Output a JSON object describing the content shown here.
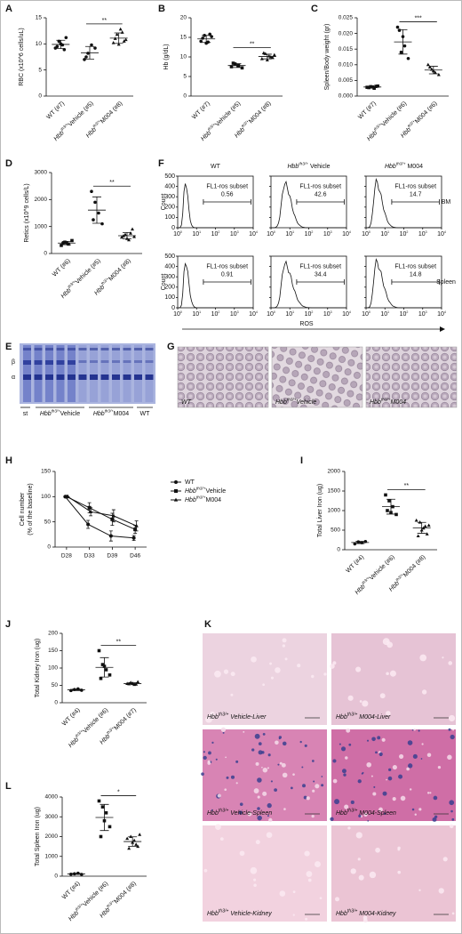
{
  "chart_data": [
    {
      "type": "dot",
      "label": "A",
      "ylabel": "RBC (x10^6 cells/uL)",
      "ylim": [
        0,
        15
      ],
      "yticks": [
        0,
        5,
        10,
        15
      ],
      "categories": [
        [
          "WT (#7)"
        ],
        [
          "Hbb",
          "th3/+",
          "Vehicle (#5)"
        ],
        [
          "Hbb",
          "th3/+",
          "M004 (#8)"
        ]
      ],
      "markers": [
        "circle",
        "circle",
        "triangle"
      ],
      "points": [
        [
          9.2,
          10.5,
          9.8,
          11.2,
          9.5,
          10.0,
          8.9
        ],
        [
          7.0,
          8.2,
          9.8,
          9.2,
          7.5
        ],
        [
          10.2,
          11.8,
          12.8,
          10.5,
          11.0,
          9.9,
          12.2,
          10.8
        ]
      ],
      "mean": [
        9.9,
        8.3,
        11.1
      ],
      "sd": [
        0.8,
        1.2,
        1.0
      ],
      "significance": {
        "label": "**",
        "between": [
          1,
          2
        ]
      }
    },
    {
      "type": "dot",
      "label": "B",
      "ylabel": "Hb (g/dL)",
      "ylim": [
        0,
        20
      ],
      "yticks": [
        0,
        5,
        10,
        15,
        20
      ],
      "categories": [
        [
          "WT (#7)"
        ],
        [
          "Hbb",
          "th3/+",
          "Vehicle (#5)"
        ],
        [
          "Hbb",
          "th3/+",
          "M004 (#8)"
        ]
      ],
      "markers": [
        "circle",
        "square",
        "triangle"
      ],
      "points": [
        [
          14.0,
          15.5,
          13.8,
          15.2,
          14.8,
          13.5,
          15.8
        ],
        [
          7.5,
          8.2,
          7.8,
          7.2,
          8.4
        ],
        [
          9.5,
          10.8,
          10.2,
          9.8,
          11.0,
          9.2,
          10.0,
          10.5
        ]
      ],
      "mean": [
        14.6,
        7.8,
        10.1
      ],
      "sd": [
        0.9,
        0.5,
        0.6
      ],
      "significance": {
        "label": "**",
        "between": [
          1,
          2
        ]
      }
    },
    {
      "type": "dot",
      "label": "C",
      "ylabel": "Spleen/Body weight (gr)",
      "ylim": [
        0,
        0.025
      ],
      "yticks": [
        {
          "value": 0,
          "label": "0.000"
        },
        {
          "value": 0.005,
          "label": "0.005"
        },
        {
          "value": 0.01,
          "label": "0.010"
        },
        {
          "value": 0.015,
          "label": "0.015"
        },
        {
          "value": 0.02,
          "label": "0.020"
        },
        {
          "value": 0.025,
          "label": "0.025"
        }
      ],
      "categories": [
        [
          "WT (#7)"
        ],
        [
          "Hbb",
          "th3/+",
          "Vehicle (#6)"
        ],
        [
          "Hbb",
          "th3/+",
          "M004 (#6)"
        ]
      ],
      "markers": [
        "square",
        "circle",
        "triangle"
      ],
      "points": [
        [
          0.0028,
          0.003,
          0.0025,
          0.0032,
          0.0027,
          0.0029,
          0.0031
        ],
        [
          0.022,
          0.014,
          0.016,
          0.012,
          0.021,
          0.019
        ],
        [
          0.01,
          0.0085,
          0.0075,
          0.0068,
          0.0092,
          0.008
        ]
      ],
      "mean": [
        0.0029,
        0.0173,
        0.0083
      ],
      "sd": [
        0.0002,
        0.0039,
        0.0012
      ],
      "significance": {
        "label": "***",
        "between": [
          1,
          2
        ]
      }
    },
    {
      "type": "dot",
      "label": "D",
      "ylabel": "Retics (x10^9 cells/L)",
      "ylim": [
        0,
        3000
      ],
      "yticks": [
        0,
        1000,
        2000,
        3000
      ],
      "categories": [
        [
          "WT (#6)"
        ],
        [
          "Hbb",
          "th3/+",
          "Vehicle (#5)"
        ],
        [
          "Hbb",
          "th3/+",
          "M004 (#8)"
        ]
      ],
      "markers": [
        "square",
        "circle",
        "triangle"
      ],
      "points": [
        [
          300,
          420,
          350,
          480,
          380,
          400
        ],
        [
          2300,
          1900,
          1500,
          1100,
          1250
        ],
        [
          600,
          700,
          500,
          900,
          650,
          550,
          750,
          620
        ]
      ],
      "mean": [
        388,
        1610,
        659
      ],
      "sd": [
        62,
        490,
        120
      ],
      "significance": {
        "label": "**",
        "between": [
          1,
          2
        ]
      }
    },
    {
      "type": "line",
      "label": "H",
      "ylabel": [
        "Cell number",
        "(% of the baseline)"
      ],
      "categories": [
        "D28",
        "D33",
        "D39",
        "D46"
      ],
      "ylim": [
        0,
        150
      ],
      "yticks": [
        0,
        50,
        100,
        150
      ],
      "series": [
        {
          "name": [
            "WT"
          ],
          "marker": "circle",
          "color": "#111111",
          "values": [
            100,
            45,
            22,
            18
          ],
          "errors": [
            0,
            8,
            10,
            5
          ]
        },
        {
          "name": [
            "Hbb",
            "th3/+",
            "Vehicle"
          ],
          "marker": "square",
          "color": "#111111",
          "values": [
            100,
            78,
            55,
            35
          ],
          "errors": [
            0,
            10,
            12,
            8
          ]
        },
        {
          "name": [
            "Hbb",
            "th3/+",
            "M004"
          ],
          "marker": "triangle",
          "color": "#111111",
          "values": [
            100,
            70,
            62,
            42
          ],
          "errors": [
            0,
            8,
            12,
            10
          ]
        }
      ]
    },
    {
      "type": "dot",
      "label": "I",
      "ylabel": "Total Liver Iron (ug)",
      "ylim": [
        0,
        2000
      ],
      "yticks": [
        0,
        500,
        1000,
        1500,
        2000
      ],
      "categories": [
        [
          "WT (#4)"
        ],
        [
          "Hbb",
          "th3/+",
          "Vehicle (#6)"
        ],
        [
          "Hbb",
          "th3/+",
          "M004 (#8)"
        ]
      ],
      "markers": [
        "circle",
        "square",
        "triangle"
      ],
      "points": [
        [
          150,
          200,
          180,
          210
        ],
        [
          1400,
          1250,
          1100,
          900,
          1000,
          950
        ],
        [
          750,
          700,
          550,
          400,
          350,
          500,
          600,
          620
        ]
      ],
      "mean": [
        185,
        1100,
        559
      ],
      "sd": [
        27,
        190,
        140
      ],
      "significance": {
        "label": "**",
        "between": [
          1,
          2
        ]
      }
    },
    {
      "type": "dot",
      "label": "J",
      "ylabel": "Total Kidney Iron (ug)",
      "ylim": [
        0,
        200
      ],
      "yticks": [
        0,
        50,
        100,
        150,
        200
      ],
      "categories": [
        [
          "WT (#4)"
        ],
        [
          "Hbb",
          "th3/+",
          "Vehicle (#6)"
        ],
        [
          "Hbb",
          "th3/+",
          "M004 (#7)"
        ]
      ],
      "markers": [
        "circle",
        "square",
        "triangle"
      ],
      "points": [
        [
          35,
          38,
          40,
          36
        ],
        [
          150,
          110,
          95,
          80,
          70,
          105
        ],
        [
          55,
          58,
          52,
          60,
          54,
          56,
          53
        ]
      ],
      "mean": [
        37,
        102,
        55
      ],
      "sd": [
        2,
        28,
        3
      ],
      "significance": {
        "label": "**",
        "between": [
          1,
          2
        ]
      }
    },
    {
      "type": "dot",
      "label": "L",
      "ylabel": "Total Spleen Iron (ug)",
      "ylim": [
        0,
        4000
      ],
      "yticks": [
        0,
        1000,
        2000,
        3000,
        4000
      ],
      "categories": [
        [
          "WT (#4)"
        ],
        [
          "Hbb",
          "th3/+",
          "Vehicle (#6)"
        ],
        [
          "Hbb",
          "th3/+",
          "M004 (#8)"
        ]
      ],
      "markers": [
        "circle",
        "square",
        "triangle"
      ],
      "points": [
        [
          100,
          120,
          150,
          90
        ],
        [
          3800,
          3500,
          3200,
          2500,
          2000,
          2800
        ],
        [
          1900,
          2000,
          1800,
          1500,
          1400,
          1700,
          1600,
          2100
        ]
      ],
      "mean": [
        115,
        2967,
        1750
      ],
      "sd": [
        26,
        660,
        240
      ],
      "significance": {
        "label": "*",
        "between": [
          1,
          2
        ]
      }
    }
  ],
  "flow": {
    "label": "F",
    "columns": [
      [
        "WT"
      ],
      [
        "Hbb",
        "th3/+",
        " Vehicle"
      ],
      [
        "Hbb",
        "th3/+",
        " M004"
      ]
    ],
    "rows": [
      "BM",
      "Spleen"
    ],
    "ylabel": "Count",
    "xlabel": "ROS",
    "gate": "FL1-ros subset",
    "percent": [
      [
        0.56,
        42.6,
        14.7
      ],
      [
        0.91,
        34.4,
        14.8
      ]
    ],
    "yticks": [
      0,
      100,
      200,
      300,
      400,
      500
    ],
    "xtick_base": "10",
    "xtick_exponents": [
      "0",
      "1",
      "2",
      "3",
      "4"
    ]
  },
  "gel": {
    "label": "E",
    "bands": [
      "β",
      "α"
    ],
    "lanes": [
      [
        "st"
      ],
      [
        "Hbb",
        "th3/+",
        "Vehicle"
      ],
      [
        "Hbb",
        "th3/+",
        "M004"
      ],
      [
        "WT"
      ]
    ]
  },
  "smears": {
    "label": "G",
    "images": [
      [
        "WT"
      ],
      [
        "Hbb",
        "th3/+",
        "Vehicle"
      ],
      [
        "Hbb",
        "th3/+",
        "M004"
      ]
    ]
  },
  "histology": {
    "label": "K",
    "images": [
      [
        [
          "Hbb",
          "th3/+",
          " Vehicle-Liver"
        ],
        [
          "Hbb",
          "th3/+",
          " M004-Liver"
        ]
      ],
      [
        [
          "Hbb",
          "th3/+",
          " Vehicle-Spleen"
        ],
        [
          "Hbb",
          "th3/+",
          " M004-Spleen"
        ]
      ],
      [
        [
          "Hbb",
          "th3/+",
          " Vehicle-Kidney"
        ],
        [
          "Hbb",
          "th3/+",
          " M004-Kidney"
        ]
      ]
    ]
  }
}
